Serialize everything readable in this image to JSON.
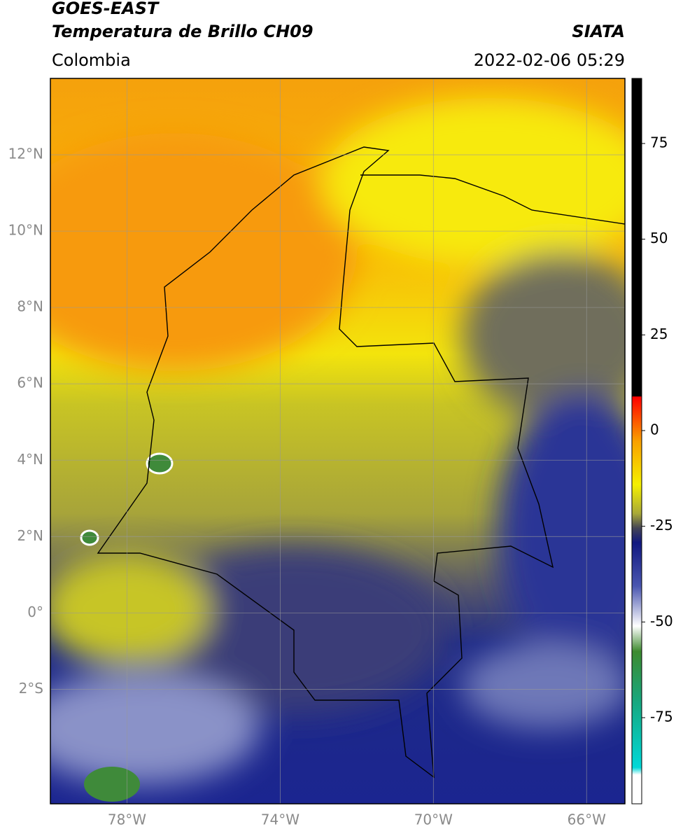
{
  "header": {
    "title": "GOES-EAST",
    "subtitle": "Temperatura de Brillo CH09",
    "source": "SIATA",
    "region": "Colombia",
    "timestamp": "2022-02-06 05:29"
  },
  "map": {
    "lonlim": [
      -80,
      -65
    ],
    "latlim": [
      -5,
      14
    ],
    "lat_ticks": [
      {
        "value": 12,
        "label": "12°N"
      },
      {
        "value": 10,
        "label": "10°N"
      },
      {
        "value": 8,
        "label": "8°N"
      },
      {
        "value": 6,
        "label": "6°N"
      },
      {
        "value": 4,
        "label": "4°N"
      },
      {
        "value": 2,
        "label": "2°N"
      },
      {
        "value": 0,
        "label": "0°"
      },
      {
        "value": -2,
        "label": "2°S"
      }
    ],
    "lon_ticks": [
      {
        "value": -78,
        "label": "78°W"
      },
      {
        "value": -74,
        "label": "74°W"
      },
      {
        "value": -70,
        "label": "70°W"
      },
      {
        "value": -66,
        "label": "66°W"
      }
    ]
  },
  "colorbar": {
    "lim": [
      -97.5,
      92
    ],
    "ticks": [
      75,
      50,
      25,
      0,
      -25,
      -50,
      -75
    ]
  }
}
